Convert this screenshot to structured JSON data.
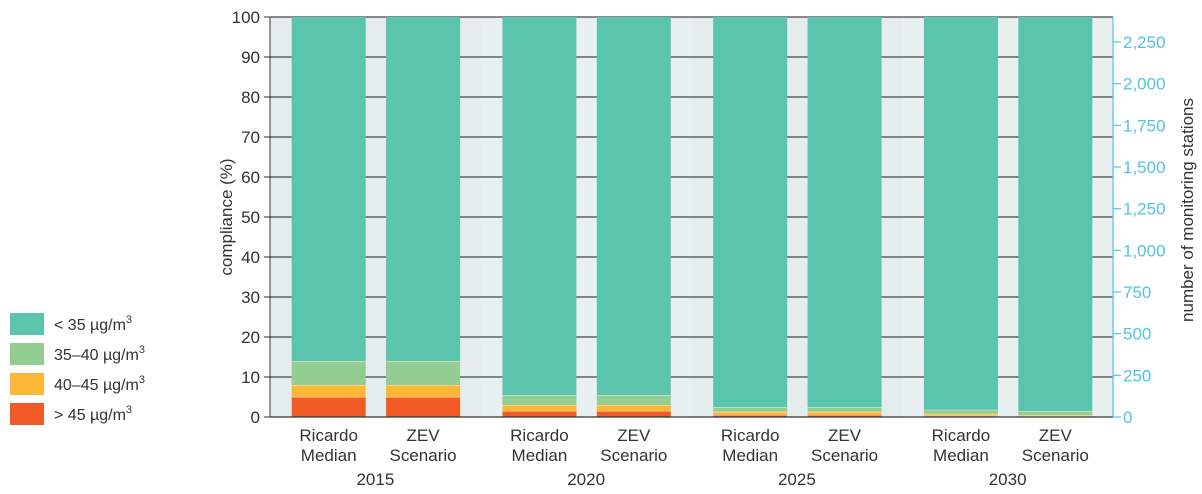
{
  "colors": {
    "lt35": "#5bc4ac",
    "b35_40": "#93cd92",
    "b40_45": "#fbb735",
    "gt45": "#f15a24",
    "band": "#e4ecee",
    "right_axis": "#4ec4e3",
    "text": "#333333"
  },
  "chart_data": {
    "type": "bar",
    "stacked": true,
    "ylabel": "compliance (%)",
    "y2label": "number of monitoring stations",
    "ylim": [
      0,
      100
    ],
    "y2lim": [
      0,
      2400
    ],
    "y_ticks": [
      "0",
      "10",
      "20",
      "30",
      "40",
      "50",
      "60",
      "70",
      "80",
      "90",
      "100"
    ],
    "y2_ticks": [
      {
        "value": 0,
        "label": "0"
      },
      {
        "value": 250,
        "label": "250"
      },
      {
        "value": 500,
        "label": "500"
      },
      {
        "value": 750,
        "label": "750"
      },
      {
        "value": 1000,
        "label": "1,000"
      },
      {
        "value": 1250,
        "label": "1,250"
      },
      {
        "value": 1500,
        "label": "1,500"
      },
      {
        "value": 1750,
        "label": "1,750"
      },
      {
        "value": 2000,
        "label": "2,000"
      },
      {
        "value": 2250,
        "label": "2,250"
      }
    ],
    "groups": [
      {
        "year": "2015",
        "bars": [
          {
            "label": [
              "Ricardo",
              "Median"
            ],
            "values": [
              5,
              3,
              6,
              86
            ]
          },
          {
            "label": [
              "ZEV",
              "Scenario"
            ],
            "values": [
              5,
              3,
              6,
              86
            ]
          }
        ]
      },
      {
        "year": "2020",
        "bars": [
          {
            "label": [
              "Ricardo",
              "Median"
            ],
            "values": [
              1.5,
              1.5,
              2.5,
              94.5
            ]
          },
          {
            "label": [
              "ZEV",
              "Scenario"
            ],
            "values": [
              1.5,
              1.5,
              2.5,
              94.5
            ]
          }
        ]
      },
      {
        "year": "2025",
        "bars": [
          {
            "label": [
              "Ricardo",
              "Median"
            ],
            "values": [
              0.5,
              0.8,
              1.2,
              97.5
            ]
          },
          {
            "label": [
              "ZEV",
              "Scenario"
            ],
            "values": [
              0.5,
              0.8,
              1.2,
              97.5
            ]
          }
        ]
      },
      {
        "year": "2030",
        "bars": [
          {
            "label": [
              "Ricardo",
              "Median"
            ],
            "values": [
              0.3,
              0.5,
              1.0,
              98.2
            ]
          },
          {
            "label": [
              "ZEV",
              "Scenario"
            ],
            "values": [
              0.2,
              0.3,
              1.0,
              98.5
            ]
          }
        ]
      }
    ],
    "stack_order": [
      "> 45 µg/m3",
      "40–45 µg/m3",
      "35–40 µg/m3",
      "< 35 µg/m3"
    ],
    "legend": [
      {
        "prefix": "< 35 µg/m",
        "sup": "3",
        "color_key": "lt35"
      },
      {
        "prefix": "35–40 µg/m",
        "sup": "3",
        "color_key": "b35_40"
      },
      {
        "prefix": "40–45 µg/m",
        "sup": "3",
        "color_key": "b40_45"
      },
      {
        "prefix": "> 45 µg/m",
        "sup": "3",
        "color_key": "gt45"
      }
    ],
    "legend_position": "left"
  }
}
